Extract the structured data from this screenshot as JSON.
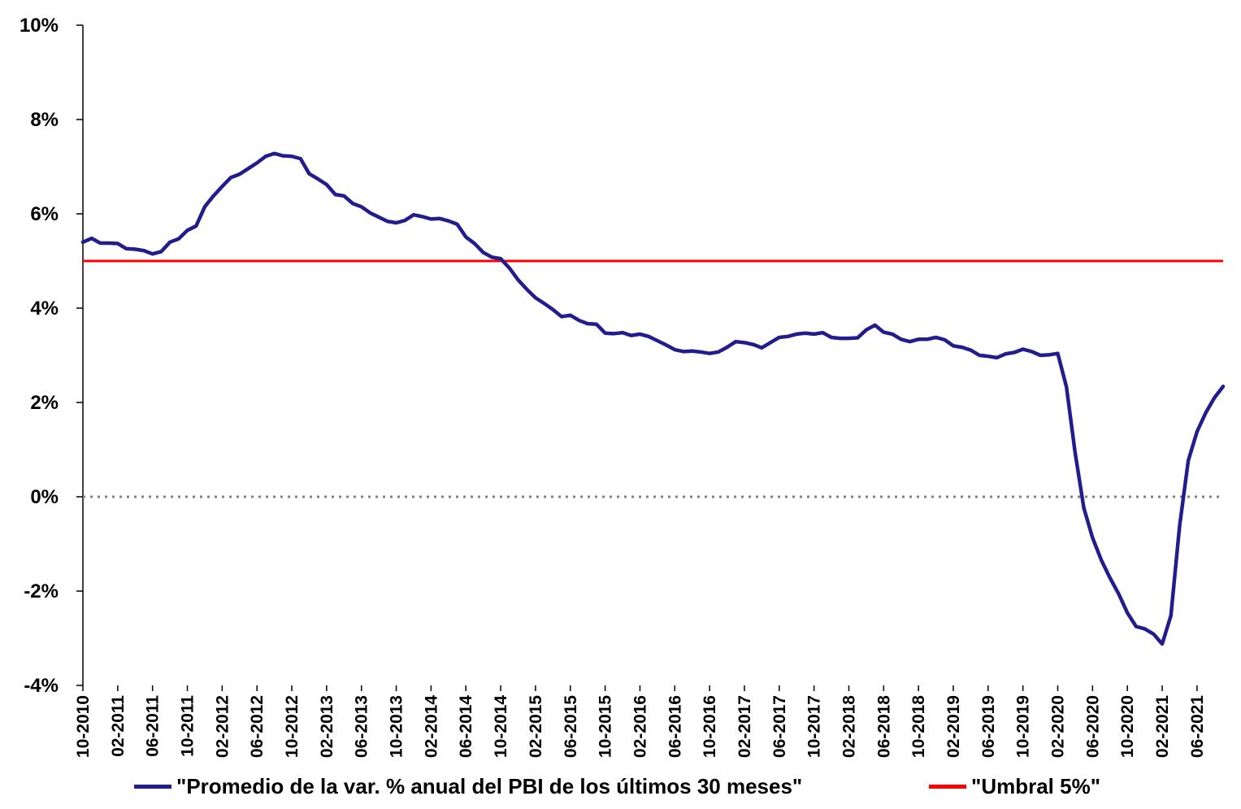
{
  "colors": {
    "series_line": "#231C8C",
    "threshold_line": "#FF0000",
    "zero_line": "#808080",
    "axis": "#000000"
  },
  "chart_data": {
    "type": "line",
    "title": "",
    "xlabel": "",
    "ylabel": "",
    "ylim": [
      -4,
      10
    ],
    "yticks": [
      "-4%",
      "-2%",
      "0%",
      "2%",
      "4%",
      "6%",
      "8%",
      "10%"
    ],
    "xticks": [
      "10-2010",
      "02-2011",
      "06-2011",
      "10-2011",
      "02-2012",
      "06-2012",
      "10-2012",
      "02-2013",
      "06-2013",
      "10-2013",
      "02-2014",
      "06-2014",
      "10-2014",
      "02-2015",
      "06-2015",
      "10-2015",
      "02-2016",
      "06-2016",
      "10-2016",
      "02-2017",
      "06-2017",
      "10-2017",
      "02-2018",
      "06-2018",
      "10-2018",
      "02-2019",
      "06-2019",
      "10-2019",
      "02-2020",
      "06-2020",
      "10-2020",
      "02-2021",
      "06-2021"
    ],
    "grid": false,
    "legend_position": "bottom",
    "series": [
      {
        "name": "\"Promedio de la var. % anual del PBI de los últimos 30 meses\"",
        "values": [
          5.4,
          5.48,
          5.38,
          5.38,
          5.37,
          5.26,
          5.25,
          5.22,
          5.15,
          5.2,
          5.4,
          5.47,
          5.65,
          5.74,
          6.15,
          6.38,
          6.58,
          6.77,
          6.84,
          6.96,
          7.08,
          7.22,
          7.28,
          7.23,
          7.22,
          7.17,
          6.85,
          6.74,
          6.62,
          6.41,
          6.38,
          6.22,
          6.15,
          6.02,
          5.93,
          5.84,
          5.81,
          5.86,
          5.98,
          5.94,
          5.89,
          5.9,
          5.85,
          5.78,
          5.51,
          5.37,
          5.18,
          5.08,
          5.05,
          4.85,
          4.6,
          4.4,
          4.22,
          4.1,
          3.97,
          3.82,
          3.85,
          3.74,
          3.67,
          3.66,
          3.47,
          3.46,
          3.48,
          3.42,
          3.45,
          3.4,
          3.31,
          3.22,
          3.12,
          3.08,
          3.09,
          3.07,
          3.04,
          3.07,
          3.17,
          3.29,
          3.27,
          3.23,
          3.16,
          3.27,
          3.38,
          3.4,
          3.45,
          3.47,
          3.45,
          3.48,
          3.38,
          3.36,
          3.36,
          3.37,
          3.54,
          3.64,
          3.49,
          3.45,
          3.34,
          3.29,
          3.34,
          3.34,
          3.38,
          3.33,
          3.2,
          3.17,
          3.11,
          3.0,
          2.98,
          2.95,
          3.03,
          3.06,
          3.13,
          3.08,
          3.0,
          3.01,
          3.04,
          2.33,
          0.93,
          -0.24,
          -0.87,
          -1.34,
          -1.72,
          -2.06,
          -2.46,
          -2.75,
          -2.8,
          -2.91,
          -3.12,
          -2.52,
          -0.62,
          0.77,
          1.38,
          1.78,
          2.1,
          2.34
        ]
      },
      {
        "name": "\"Umbral 5%\"",
        "value": 5
      }
    ]
  },
  "legend": {
    "series_label": "\"Promedio de la var. % anual del PBI de los últimos 30 meses\"",
    "threshold_label": "\"Umbral 5%\""
  }
}
